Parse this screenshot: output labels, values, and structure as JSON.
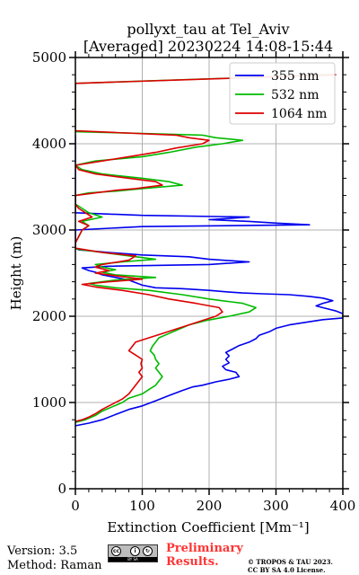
{
  "chart_data": {
    "type": "line",
    "title_line1": "pollyxt_tau at Tel_Aviv",
    "title_line2": "[Averaged] 20230224 14:08-15:44",
    "xlabel": "Extinction Coefficient [Mm⁻¹]",
    "ylabel": "Height (m)",
    "xlim": [
      0,
      400
    ],
    "ylim": [
      0,
      5000
    ],
    "xticks": [
      0,
      100,
      200,
      300,
      400
    ],
    "yticks": [
      0,
      1000,
      2000,
      3000,
      4000,
      5000
    ],
    "grid": true,
    "legend_position": "top-right",
    "series": [
      {
        "name": "355 nm",
        "color": "#0000ee",
        "points": [
          [
            0,
            730
          ],
          [
            20,
            760
          ],
          [
            40,
            800
          ],
          [
            60,
            860
          ],
          [
            80,
            920
          ],
          [
            100,
            960
          ],
          [
            120,
            1020
          ],
          [
            140,
            1080
          ],
          [
            160,
            1140
          ],
          [
            175,
            1180
          ],
          [
            190,
            1200
          ],
          [
            210,
            1240
          ],
          [
            230,
            1270
          ],
          [
            245,
            1300
          ],
          [
            240,
            1350
          ],
          [
            225,
            1380
          ],
          [
            220,
            1420
          ],
          [
            230,
            1460
          ],
          [
            225,
            1500
          ],
          [
            230,
            1540
          ],
          [
            225,
            1580
          ],
          [
            235,
            1620
          ],
          [
            245,
            1660
          ],
          [
            260,
            1700
          ],
          [
            270,
            1740
          ],
          [
            275,
            1780
          ],
          [
            290,
            1820
          ],
          [
            300,
            1860
          ],
          [
            320,
            1900
          ],
          [
            345,
            1930
          ],
          [
            370,
            1960
          ],
          [
            400,
            1980
          ],
          [
            400,
            2030
          ],
          [
            390,
            2060
          ],
          [
            375,
            2090
          ],
          [
            360,
            2120
          ],
          [
            370,
            2150
          ],
          [
            385,
            2180
          ],
          [
            370,
            2210
          ],
          [
            350,
            2230
          ],
          [
            320,
            2250
          ],
          [
            280,
            2260
          ],
          [
            250,
            2270
          ],
          [
            230,
            2280
          ],
          [
            200,
            2300
          ],
          [
            160,
            2320
          ],
          [
            120,
            2330
          ],
          [
            100,
            2360
          ],
          [
            80,
            2420
          ],
          [
            60,
            2450
          ],
          [
            40,
            2480
          ],
          [
            30,
            2510
          ],
          [
            20,
            2530
          ],
          [
            10,
            2560
          ],
          [
            50,
            2580
          ],
          [
            200,
            2600
          ],
          [
            260,
            2630
          ],
          [
            200,
            2660
          ],
          [
            170,
            2690
          ],
          [
            100,
            2710
          ],
          [
            50,
            2740
          ],
          [
            5,
            2770
          ],
          [
            0,
            2790
          ],
          [
            0,
            2850
          ],
          [
            0,
            3000
          ],
          [
            100,
            3040
          ],
          [
            350,
            3060
          ],
          [
            300,
            3080
          ],
          [
            260,
            3100
          ],
          [
            200,
            3120
          ],
          [
            260,
            3150
          ],
          [
            100,
            3170
          ],
          [
            0,
            3200
          ],
          [
            0,
            3400
          ],
          [
            0,
            4100
          ]
        ]
      },
      {
        "name": "532 nm",
        "color": "#00bb00",
        "points": [
          [
            0,
            770
          ],
          [
            15,
            800
          ],
          [
            30,
            850
          ],
          [
            40,
            900
          ],
          [
            55,
            950
          ],
          [
            70,
            1000
          ],
          [
            80,
            1050
          ],
          [
            100,
            1100
          ],
          [
            110,
            1150
          ],
          [
            120,
            1200
          ],
          [
            125,
            1250
          ],
          [
            130,
            1300
          ],
          [
            125,
            1350
          ],
          [
            120,
            1400
          ],
          [
            125,
            1450
          ],
          [
            120,
            1500
          ],
          [
            118,
            1550
          ],
          [
            112,
            1600
          ],
          [
            115,
            1650
          ],
          [
            120,
            1700
          ],
          [
            125,
            1750
          ],
          [
            140,
            1800
          ],
          [
            155,
            1850
          ],
          [
            170,
            1900
          ],
          [
            195,
            1950
          ],
          [
            230,
            2000
          ],
          [
            260,
            2050
          ],
          [
            270,
            2100
          ],
          [
            250,
            2150
          ],
          [
            200,
            2200
          ],
          [
            160,
            2250
          ],
          [
            110,
            2300
          ],
          [
            60,
            2330
          ],
          [
            30,
            2360
          ],
          [
            20,
            2380
          ],
          [
            60,
            2420
          ],
          [
            120,
            2450
          ],
          [
            60,
            2480
          ],
          [
            40,
            2510
          ],
          [
            60,
            2540
          ],
          [
            40,
            2570
          ],
          [
            30,
            2600
          ],
          [
            70,
            2630
          ],
          [
            120,
            2660
          ],
          [
            80,
            2700
          ],
          [
            40,
            2740
          ],
          [
            0,
            2780
          ],
          [
            0,
            2850
          ],
          [
            10,
            3000
          ],
          [
            20,
            3050
          ],
          [
            10,
            3100
          ],
          [
            40,
            3150
          ],
          [
            20,
            3200
          ],
          [
            10,
            3250
          ],
          [
            0,
            3300
          ],
          [
            0,
            3400
          ],
          [
            20,
            3430
          ],
          [
            60,
            3450
          ],
          [
            100,
            3480
          ],
          [
            160,
            3520
          ],
          [
            140,
            3560
          ],
          [
            100,
            3600
          ],
          [
            40,
            3650
          ],
          [
            10,
            3700
          ],
          [
            0,
            3750
          ],
          [
            30,
            3800
          ],
          [
            100,
            3850
          ],
          [
            140,
            3900
          ],
          [
            180,
            3960
          ],
          [
            220,
            4000
          ],
          [
            250,
            4040
          ],
          [
            210,
            4070
          ],
          [
            190,
            4100
          ],
          [
            100,
            4120
          ],
          [
            0,
            4140
          ],
          [
            0,
            4700
          ],
          [
            380,
            4800
          ]
        ]
      },
      {
        "name": "1064 nm",
        "color": "#dd0000",
        "points": [
          [
            0,
            780
          ],
          [
            10,
            800
          ],
          [
            20,
            830
          ],
          [
            30,
            870
          ],
          [
            40,
            920
          ],
          [
            55,
            980
          ],
          [
            70,
            1040
          ],
          [
            80,
            1100
          ],
          [
            90,
            1200
          ],
          [
            100,
            1300
          ],
          [
            95,
            1350
          ],
          [
            100,
            1400
          ],
          [
            98,
            1450
          ],
          [
            100,
            1500
          ],
          [
            90,
            1550
          ],
          [
            80,
            1600
          ],
          [
            85,
            1650
          ],
          [
            90,
            1700
          ],
          [
            110,
            1750
          ],
          [
            130,
            1800
          ],
          [
            150,
            1850
          ],
          [
            170,
            1900
          ],
          [
            190,
            1950
          ],
          [
            210,
            2000
          ],
          [
            220,
            2050
          ],
          [
            215,
            2100
          ],
          [
            180,
            2150
          ],
          [
            140,
            2200
          ],
          [
            110,
            2250
          ],
          [
            70,
            2300
          ],
          [
            30,
            2340
          ],
          [
            10,
            2370
          ],
          [
            50,
            2400
          ],
          [
            100,
            2430
          ],
          [
            60,
            2470
          ],
          [
            30,
            2500
          ],
          [
            50,
            2530
          ],
          [
            30,
            2570
          ],
          [
            40,
            2600
          ],
          [
            80,
            2650
          ],
          [
            90,
            2700
          ],
          [
            40,
            2740
          ],
          [
            0,
            2790
          ],
          [
            0,
            2850
          ],
          [
            10,
            3000
          ],
          [
            20,
            3050
          ],
          [
            5,
            3100
          ],
          [
            25,
            3150
          ],
          [
            15,
            3200
          ],
          [
            5,
            3250
          ],
          [
            0,
            3300
          ],
          [
            0,
            3400
          ],
          [
            30,
            3430
          ],
          [
            60,
            3460
          ],
          [
            90,
            3480
          ],
          [
            130,
            3520
          ],
          [
            120,
            3560
          ],
          [
            80,
            3600
          ],
          [
            30,
            3650
          ],
          [
            5,
            3700
          ],
          [
            0,
            3750
          ],
          [
            40,
            3800
          ],
          [
            80,
            3850
          ],
          [
            120,
            3900
          ],
          [
            150,
            3950
          ],
          [
            190,
            4000
          ],
          [
            200,
            4040
          ],
          [
            170,
            4070
          ],
          [
            150,
            4100
          ],
          [
            60,
            4130
          ],
          [
            0,
            4150
          ],
          [
            0,
            4700
          ],
          [
            390,
            4800
          ]
        ]
      }
    ]
  },
  "footer": {
    "version": "Version: 3.5",
    "method": "Method: Raman",
    "preliminary_line1": "Preliminary",
    "preliminary_line2": "Results.",
    "copyright_line1": "© TROPOS & TAU 2023.",
    "copyright_line2": "CC BY SA 4.0 License.",
    "license_badge_text": "BY SA",
    "license_badge_cc": "cc"
  }
}
